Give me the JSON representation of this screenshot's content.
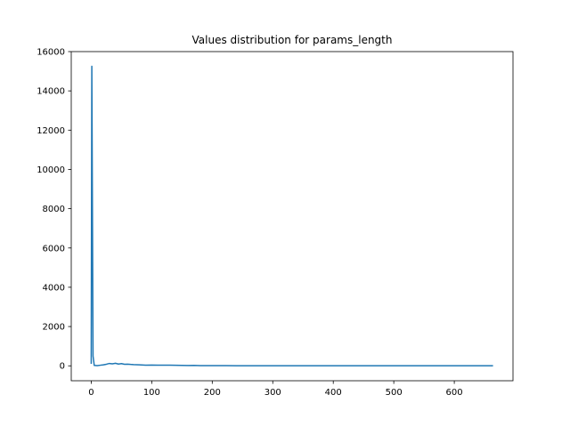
{
  "chart_data": {
    "type": "line",
    "title": "Values distribution for params_length",
    "xlabel": "",
    "ylabel": "",
    "xlim": [
      -33,
      697
    ],
    "ylim": [
      -760,
      16000
    ],
    "xticks": [
      0,
      100,
      200,
      300,
      400,
      500,
      600
    ],
    "yticks": [
      0,
      2000,
      4000,
      6000,
      8000,
      10000,
      12000,
      14000,
      16000
    ],
    "grid": false,
    "legend": "none",
    "series": [
      {
        "color": "#1f77b4",
        "x": [
          0,
          1,
          2,
          3,
          5,
          10,
          15,
          20,
          25,
          30,
          35,
          40,
          45,
          50,
          55,
          60,
          65,
          70,
          80,
          90,
          100,
          110,
          120,
          130,
          140,
          150,
          160,
          170,
          180,
          190,
          200,
          220,
          240,
          260,
          280,
          300,
          350,
          400,
          450,
          500,
          550,
          600,
          664
        ],
        "y": [
          100,
          15250,
          8000,
          500,
          20,
          10,
          30,
          50,
          80,
          120,
          100,
          130,
          90,
          110,
          80,
          85,
          70,
          60,
          50,
          35,
          40,
          30,
          35,
          30,
          25,
          20,
          15,
          20,
          10,
          12,
          10,
          8,
          6,
          5,
          5,
          4,
          3,
          3,
          2,
          2,
          2,
          2,
          2
        ]
      }
    ]
  }
}
